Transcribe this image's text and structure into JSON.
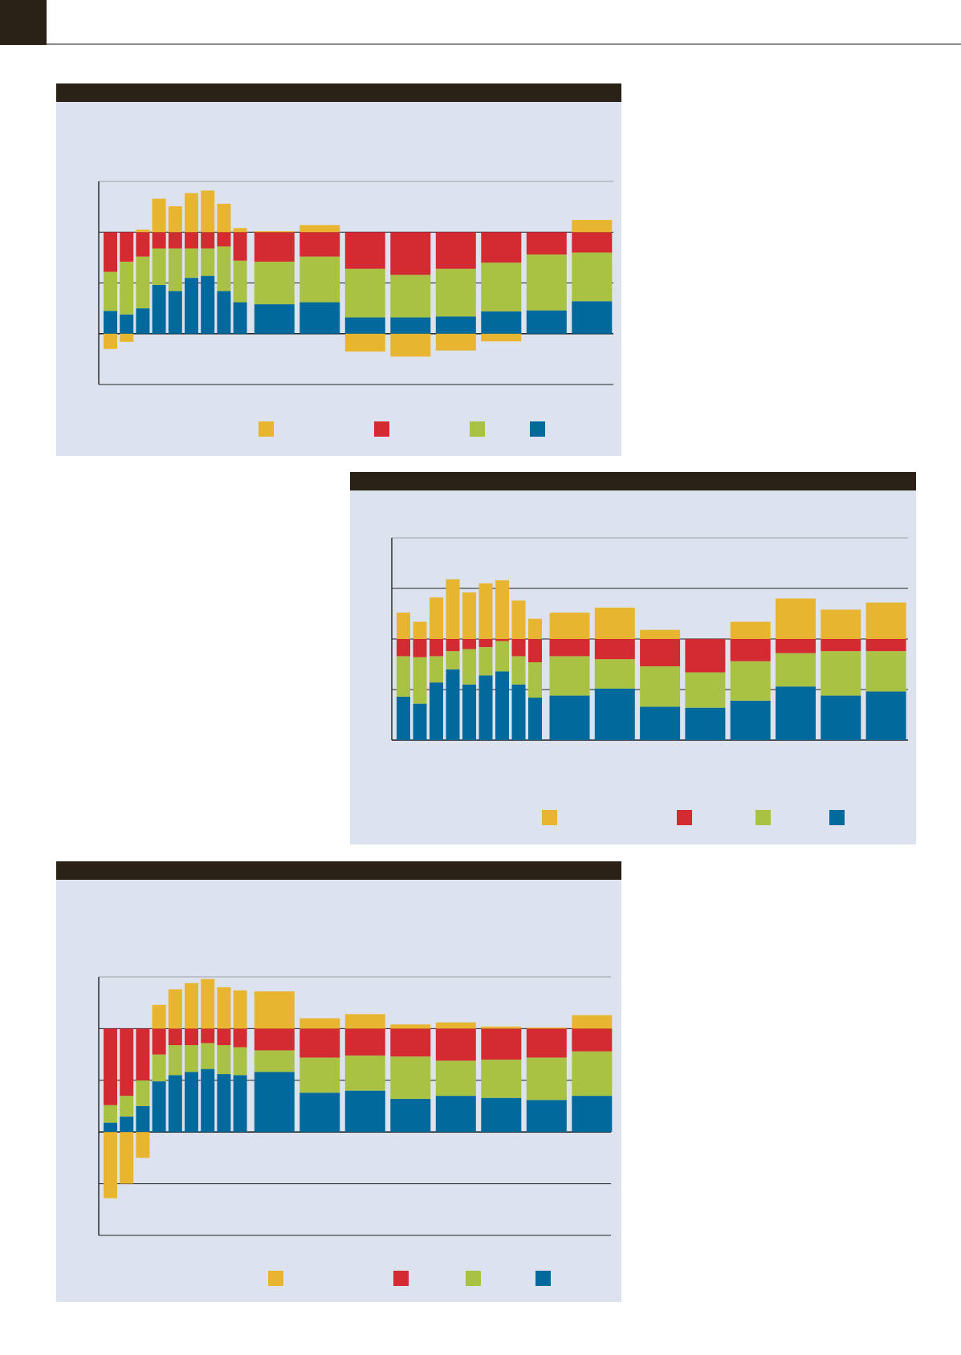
{
  "colors": {
    "header_dark": "#2a2217",
    "panel_bg": "#dde3ee",
    "rule": "#8a8a8a",
    "axis": "#222222",
    "yellow": "#e8b530",
    "red": "#d42a32",
    "green": "#a9c244",
    "blue": "#01699c"
  },
  "chart_data": [
    {
      "type": "bar",
      "stacked": true,
      "title": "",
      "xlabel": "",
      "ylabel": "",
      "ylim": [
        -1,
        3
      ],
      "grid": true,
      "legend": "bottom",
      "series_order_bottom_up": [
        "blue",
        "green",
        "red",
        "yellow"
      ],
      "bars": [
        {
          "width": "narrow",
          "blue": 0.45,
          "green": 0.77,
          "red": 0.78,
          "yellow": -0.3
        },
        {
          "width": "narrow",
          "blue": 0.38,
          "green": 1.04,
          "red": 0.58,
          "yellow": -0.16
        },
        {
          "width": "narrow",
          "blue": 0.5,
          "green": 1.02,
          "red": 0.48,
          "yellow": 0.05
        },
        {
          "width": "narrow",
          "blue": 0.96,
          "green": 0.72,
          "red": 0.32,
          "yellow": 0.66
        },
        {
          "width": "narrow",
          "blue": 0.84,
          "green": 0.84,
          "red": 0.32,
          "yellow": 0.51
        },
        {
          "width": "narrow",
          "blue": 1.1,
          "green": 0.58,
          "red": 0.32,
          "yellow": 0.77
        },
        {
          "width": "narrow",
          "blue": 1.14,
          "green": 0.54,
          "red": 0.32,
          "yellow": 0.82
        },
        {
          "width": "narrow",
          "blue": 0.84,
          "green": 0.88,
          "red": 0.28,
          "yellow": 0.56
        },
        {
          "width": "narrow",
          "blue": 0.62,
          "green": 0.82,
          "red": 0.56,
          "yellow": 0.08
        },
        {
          "width": "wide",
          "blue": 0.58,
          "green": 0.84,
          "red": 0.58,
          "yellow": 0.02
        },
        {
          "width": "wide",
          "blue": 0.62,
          "green": 0.9,
          "red": 0.48,
          "yellow": 0.14
        },
        {
          "width": "wide",
          "blue": 0.32,
          "green": 0.96,
          "red": 0.72,
          "yellow": -0.35
        },
        {
          "width": "wide",
          "blue": 0.32,
          "green": 0.84,
          "red": 0.84,
          "yellow": -0.45
        },
        {
          "width": "wide",
          "blue": 0.34,
          "green": 0.94,
          "red": 0.72,
          "yellow": -0.33
        },
        {
          "width": "wide",
          "blue": 0.44,
          "green": 0.96,
          "red": 0.6,
          "yellow": -0.15
        },
        {
          "width": "wide",
          "blue": 0.46,
          "green": 1.1,
          "red": 0.44,
          "yellow": 0.0
        },
        {
          "width": "wide",
          "blue": 0.64,
          "green": 0.96,
          "red": 0.4,
          "yellow": 0.24
        }
      ],
      "legend_entries": [
        "yellow",
        "red",
        "green",
        "blue"
      ]
    },
    {
      "type": "bar",
      "stacked": true,
      "title": "",
      "xlabel": "",
      "ylabel": "",
      "ylim": [
        0,
        4
      ],
      "grid": true,
      "legend": "bottom",
      "series_order_bottom_up": [
        "blue",
        "green",
        "red",
        "yellow"
      ],
      "bars": [
        {
          "width": "narrow",
          "blue": 0.86,
          "green": 0.8,
          "red": 0.34,
          "yellow": 0.52
        },
        {
          "width": "narrow",
          "blue": 0.72,
          "green": 0.92,
          "red": 0.36,
          "yellow": 0.34
        },
        {
          "width": "narrow",
          "blue": 1.14,
          "green": 0.52,
          "red": 0.34,
          "yellow": 0.82
        },
        {
          "width": "narrow",
          "blue": 1.4,
          "green": 0.36,
          "red": 0.24,
          "yellow": 1.18
        },
        {
          "width": "narrow",
          "blue": 1.1,
          "green": 0.7,
          "red": 0.2,
          "yellow": 0.92
        },
        {
          "width": "narrow",
          "blue": 1.28,
          "green": 0.56,
          "red": 0.16,
          "yellow": 1.1
        },
        {
          "width": "narrow",
          "blue": 1.36,
          "green": 0.6,
          "red": 0.04,
          "yellow": 1.16
        },
        {
          "width": "narrow",
          "blue": 1.1,
          "green": 0.56,
          "red": 0.34,
          "yellow": 0.76
        },
        {
          "width": "narrow",
          "blue": 0.84,
          "green": 0.7,
          "red": 0.46,
          "yellow": 0.4
        },
        {
          "width": "wide",
          "blue": 0.88,
          "green": 0.78,
          "red": 0.34,
          "yellow": 0.52
        },
        {
          "width": "wide",
          "blue": 1.02,
          "green": 0.58,
          "red": 0.4,
          "yellow": 0.62
        },
        {
          "width": "wide",
          "blue": 0.66,
          "green": 0.8,
          "red": 0.54,
          "yellow": 0.18
        },
        {
          "width": "wide",
          "blue": 0.64,
          "green": 0.7,
          "red": 0.66,
          "yellow": 0.0
        },
        {
          "width": "wide",
          "blue": 0.78,
          "green": 0.78,
          "red": 0.44,
          "yellow": 0.34
        },
        {
          "width": "wide",
          "blue": 1.06,
          "green": 0.66,
          "red": 0.28,
          "yellow": 0.8
        },
        {
          "width": "wide",
          "blue": 0.88,
          "green": 0.88,
          "red": 0.24,
          "yellow": 0.58
        },
        {
          "width": "wide",
          "blue": 0.96,
          "green": 0.8,
          "red": 0.24,
          "yellow": 0.72
        }
      ],
      "legend_entries": [
        "yellow",
        "red",
        "green",
        "blue"
      ]
    },
    {
      "type": "bar",
      "stacked": true,
      "title": "",
      "xlabel": "",
      "ylabel": "",
      "ylim": [
        -2,
        3
      ],
      "grid": true,
      "legend": "bottom",
      "series_order_bottom_up": [
        "blue",
        "green",
        "red",
        "yellow"
      ],
      "bars": [
        {
          "width": "narrow",
          "blue": 0.18,
          "green": 0.34,
          "red": 1.48,
          "yellow": -1.28
        },
        {
          "width": "narrow",
          "blue": 0.3,
          "green": 0.4,
          "red": 1.3,
          "yellow": -1.0
        },
        {
          "width": "narrow",
          "blue": 0.5,
          "green": 0.5,
          "red": 1.0,
          "yellow": -0.5
        },
        {
          "width": "narrow",
          "blue": 0.98,
          "green": 0.52,
          "red": 0.5,
          "yellow": 0.46
        },
        {
          "width": "narrow",
          "blue": 1.1,
          "green": 0.58,
          "red": 0.32,
          "yellow": 0.76
        },
        {
          "width": "narrow",
          "blue": 1.16,
          "green": 0.52,
          "red": 0.32,
          "yellow": 0.88
        },
        {
          "width": "narrow",
          "blue": 1.22,
          "green": 0.5,
          "red": 0.28,
          "yellow": 0.96
        },
        {
          "width": "narrow",
          "blue": 1.12,
          "green": 0.56,
          "red": 0.32,
          "yellow": 0.8
        },
        {
          "width": "narrow",
          "blue": 1.1,
          "green": 0.54,
          "red": 0.36,
          "yellow": 0.74
        },
        {
          "width": "wide",
          "blue": 1.16,
          "green": 0.42,
          "red": 0.42,
          "yellow": 0.72
        },
        {
          "width": "wide",
          "blue": 0.76,
          "green": 0.68,
          "red": 0.56,
          "yellow": 0.2
        },
        {
          "width": "wide",
          "blue": 0.8,
          "green": 0.68,
          "red": 0.52,
          "yellow": 0.28
        },
        {
          "width": "wide",
          "blue": 0.64,
          "green": 0.82,
          "red": 0.54,
          "yellow": 0.08
        },
        {
          "width": "wide",
          "blue": 0.7,
          "green": 0.68,
          "red": 0.62,
          "yellow": 0.12
        },
        {
          "width": "wide",
          "blue": 0.66,
          "green": 0.74,
          "red": 0.6,
          "yellow": 0.04
        },
        {
          "width": "wide",
          "blue": 0.62,
          "green": 0.82,
          "red": 0.56,
          "yellow": 0.02
        },
        {
          "width": "wide",
          "blue": 0.7,
          "green": 0.86,
          "red": 0.44,
          "yellow": 0.26
        }
      ],
      "legend_entries": [
        "yellow",
        "red",
        "green",
        "blue"
      ]
    }
  ]
}
